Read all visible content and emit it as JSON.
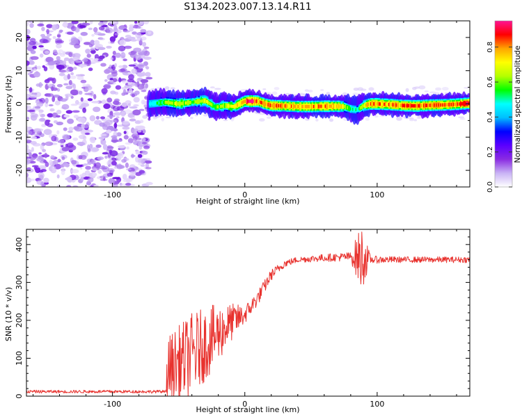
{
  "title": "S134.2023.007.13.14.R11",
  "chart_data": [
    {
      "type": "heatmap",
      "xlabel": "Height of straight line (km)",
      "ylabel": "Frequency (Hz)",
      "xlim": [
        -165,
        170
      ],
      "ylim": [
        -25,
        25
      ],
      "xticks": [
        -100,
        0,
        100
      ],
      "xtick_labels": [
        "-100",
        "0",
        "100"
      ],
      "yticks": [
        -20,
        -10,
        0,
        10,
        20
      ],
      "ytick_labels": [
        "-20",
        "-10",
        "0",
        "10",
        "20"
      ],
      "noise_region_x": [
        -165,
        -72
      ],
      "signal_region_x": [
        -72,
        170
      ],
      "ridge": {
        "x": [
          -72,
          -60,
          -50,
          -40,
          -30,
          -22,
          -15,
          -8,
          0,
          5,
          10,
          15,
          20,
          30,
          40,
          50,
          60,
          70,
          75,
          80,
          85,
          90,
          95,
          100,
          110,
          120,
          130,
          140,
          150,
          160,
          170
        ],
        "freq": [
          0,
          0.5,
          0,
          0.5,
          1,
          -1,
          -0.5,
          -0.8,
          0.8,
          0.8,
          0.8,
          0,
          -0.5,
          -0.6,
          -0.8,
          -0.8,
          -0.7,
          -0.7,
          -0.8,
          -1.5,
          -1.8,
          -0.5,
          0,
          0,
          -0.2,
          -0.5,
          -0.6,
          -0.4,
          -0.3,
          -0.1,
          0.2
        ],
        "amplitude": [
          0.5,
          0.6,
          0.7,
          0.6,
          0.7,
          0.6,
          0.65,
          0.7,
          0.85,
          0.9,
          0.85,
          0.8,
          0.85,
          0.8,
          0.8,
          0.8,
          0.82,
          0.8,
          0.7,
          0.55,
          0.5,
          0.7,
          0.85,
          0.85,
          0.8,
          0.85,
          0.85,
          0.85,
          0.85,
          0.85,
          0.9
        ]
      },
      "colorbar": {
        "label": "Normalized spectral amplitude",
        "range": [
          0,
          0.95
        ],
        "ticks": [
          0.0,
          0.2,
          0.4,
          0.6,
          0.8
        ],
        "tick_labels": [
          "0.0",
          "0.2",
          "0.4",
          "0.6",
          "0.8"
        ],
        "colors": [
          "#ffffff",
          "#c9b3f5",
          "#8a2be2",
          "#5a00ff",
          "#0000ff",
          "#00bfff",
          "#00ffff",
          "#00ff00",
          "#b4ff00",
          "#ffff00",
          "#ffa500",
          "#ff0000",
          "#ff1493"
        ]
      }
    },
    {
      "type": "line",
      "xlabel": "Height of straight line (km)",
      "ylabel": "SNR (10 * v/v)",
      "xlim": [
        -165,
        170
      ],
      "ylim": [
        0,
        440
      ],
      "xticks": [
        -100,
        0,
        100
      ],
      "xtick_labels": [
        "-100",
        "0",
        "100"
      ],
      "yticks": [
        0,
        100,
        200,
        300,
        400
      ],
      "ytick_labels": [
        "0",
        "100",
        "200",
        "300",
        "400"
      ],
      "series": [
        {
          "name": "SNR",
          "color": "#e8322e",
          "trend_x": [
            -165,
            -60,
            -58,
            -40,
            -25,
            -10,
            0,
            10,
            20,
            30,
            40,
            60,
            80,
            88,
            95,
            120,
            170
          ],
          "trend_y": [
            12,
            12,
            70,
            110,
            150,
            195,
            215,
            260,
            320,
            350,
            360,
            365,
            368,
            365,
            360,
            360,
            360
          ],
          "noise_amp": [
            4,
            4,
            90,
            110,
            90,
            50,
            25,
            20,
            15,
            10,
            8,
            10,
            12,
            90,
            10,
            8,
            8
          ]
        }
      ]
    }
  ]
}
